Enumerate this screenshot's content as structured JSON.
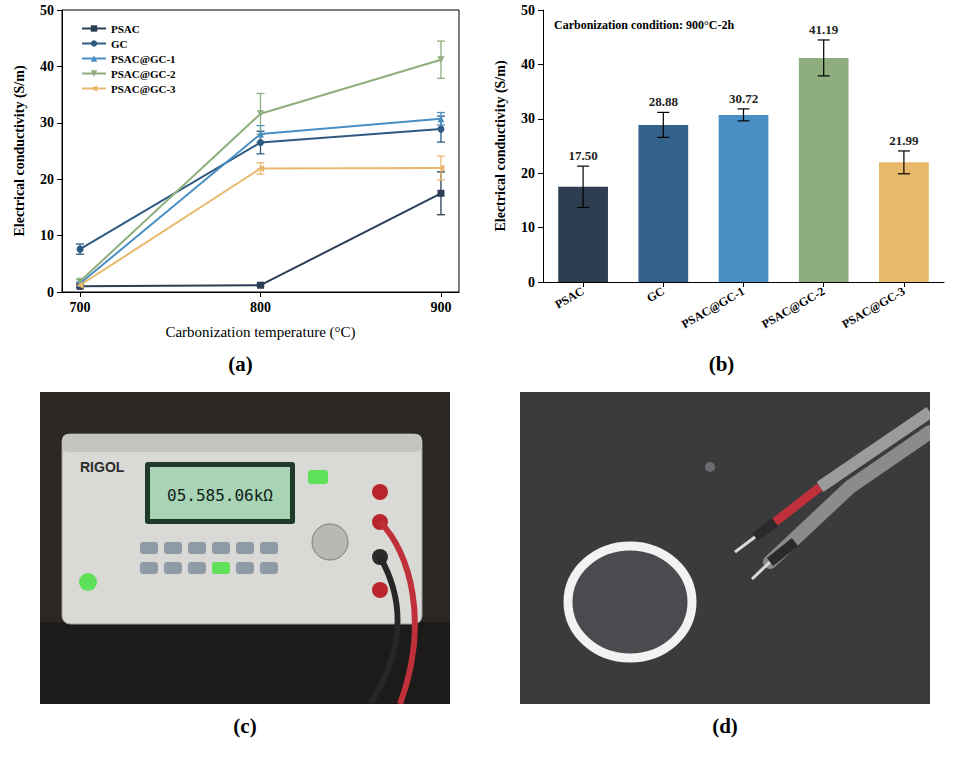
{
  "chart_data": [
    {
      "type": "line",
      "panel": "(a)",
      "x_label": "Carbonization temperature (°C)",
      "y_label": "Electrical conductivity (S/m)",
      "x": [
        700,
        800,
        900
      ],
      "xlim": [
        690,
        910
      ],
      "xticks": [
        700,
        800,
        900
      ],
      "ylim": [
        0,
        50
      ],
      "yticks": [
        0,
        10,
        20,
        30,
        40,
        50
      ],
      "grid": false,
      "legend": "upper left",
      "series": [
        {
          "name": "PSAC",
          "color": "#2c3e55",
          "marker": "square",
          "values": [
            1.0,
            1.2,
            17.5
          ],
          "errors": [
            0.2,
            0.2,
            3.8
          ]
        },
        {
          "name": "GC",
          "color": "#2f5b82",
          "marker": "circle",
          "values": [
            7.6,
            26.5,
            28.88
          ],
          "errors": [
            0.9,
            2.0,
            2.3
          ]
        },
        {
          "name": "PSAC@GC-1",
          "color": "#4a8fc4",
          "marker": "triangle-up",
          "values": [
            1.5,
            28.0,
            30.72
          ],
          "errors": [
            0.3,
            1.5,
            1.1
          ]
        },
        {
          "name": "PSAC@GC-2",
          "color": "#8fae7e",
          "marker": "triangle-down",
          "values": [
            1.9,
            31.6,
            41.19
          ],
          "errors": [
            0.3,
            3.6,
            3.3
          ]
        },
        {
          "name": "PSAC@GC-3",
          "color": "#e8b86d",
          "marker": "triangle-left",
          "values": [
            1.2,
            21.9,
            21.99
          ],
          "errors": [
            0.2,
            1.0,
            2.1
          ]
        }
      ]
    },
    {
      "type": "bar",
      "panel": "(b)",
      "annotation": "Carbonization condition: 900°C-2h",
      "y_label": "Electrical conductivity (S/m)",
      "categories": [
        "PSAC",
        "GC",
        "PSAC@GC-1",
        "PSAC@GC-2",
        "PSAC@GC-3"
      ],
      "values": [
        17.5,
        28.88,
        30.72,
        41.19,
        21.99
      ],
      "value_labels": [
        "17.50",
        "28.88",
        "30.72",
        "41.19",
        "21.99"
      ],
      "errors": [
        3.8,
        2.3,
        1.1,
        3.3,
        2.1
      ],
      "colors": [
        "#2c3e50",
        "#34618a",
        "#4a8fc4",
        "#8fae7e",
        "#e8b86d"
      ],
      "ylim": [
        0,
        50
      ],
      "yticks": [
        0,
        10,
        20,
        30,
        40,
        50
      ],
      "grid": false,
      "data_labels": true
    }
  ],
  "photos": [
    {
      "panel": "(c)",
      "texts": [
        "RIGOL",
        "05.585.06kΩ"
      ]
    },
    {
      "panel": "(d)"
    }
  ]
}
